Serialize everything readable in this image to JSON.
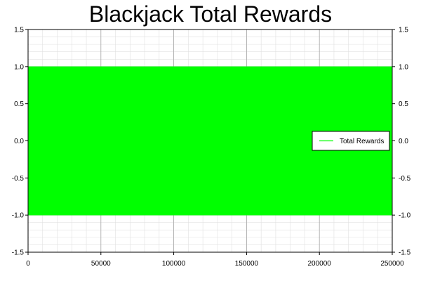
{
  "chart_data": {
    "type": "area",
    "title": "Blackjack Total Rewards",
    "xlabel": "",
    "ylabel": "",
    "xlim": [
      0,
      250000
    ],
    "ylim": [
      -1.5,
      1.5
    ],
    "x_ticks": [
      0,
      50000,
      100000,
      150000,
      200000,
      250000
    ],
    "x_tick_labels": [
      "0",
      "50000",
      "100000",
      "150000",
      "200000",
      "250000"
    ],
    "y_ticks": [
      -1.5,
      -1.0,
      -0.5,
      0.0,
      0.5,
      1.0,
      1.5
    ],
    "y_tick_labels": [
      "-1.5",
      "-1.0",
      "-0.5",
      "0.0",
      "0.5",
      "1.0",
      "1.5"
    ],
    "grid": true,
    "legend_position": "right",
    "series": [
      {
        "name": "Total Rewards",
        "color": "#00ff00",
        "description_values": "reward oscillates densely between -1 and 1 across all episodes",
        "x": [
          0,
          250000
        ],
        "y_min": [
          -1,
          -1
        ],
        "y_max": [
          1,
          1
        ]
      }
    ]
  }
}
